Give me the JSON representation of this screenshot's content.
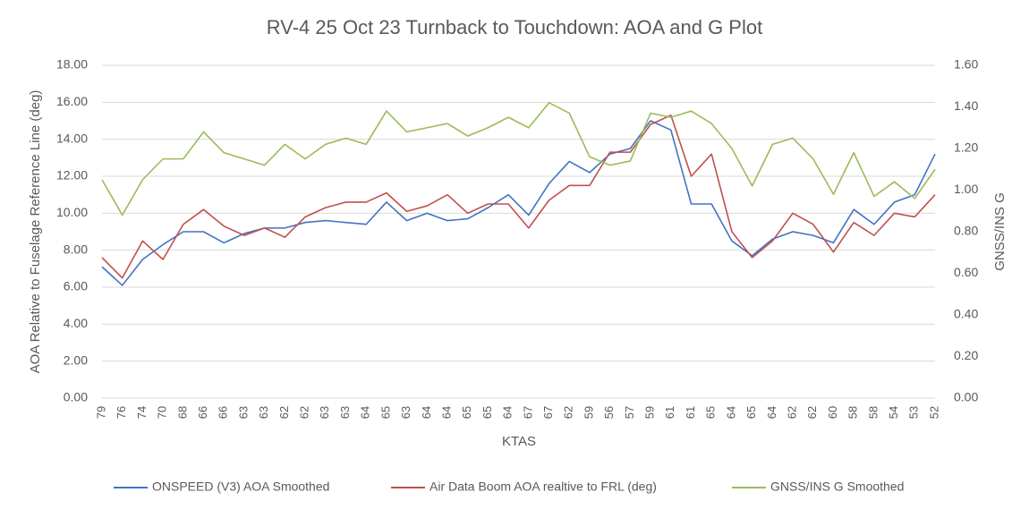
{
  "chart_data": {
    "type": "line",
    "title": "RV-4 25 Oct 23 Turnback to Touchdown: AOA and G Plot",
    "x_label": "KTAS",
    "y_label": "AOA Relative to Fuselage Reference Line (deg)",
    "y2_label": "GNSS/INS G",
    "categories": [
      "79",
      "76",
      "74",
      "70",
      "68",
      "66",
      "66",
      "63",
      "63",
      "62",
      "62",
      "63",
      "63",
      "64",
      "65",
      "63",
      "64",
      "64",
      "65",
      "65",
      "64",
      "67",
      "67",
      "62",
      "59",
      "56",
      "57",
      "59",
      "61",
      "61",
      "65",
      "64",
      "65",
      "64",
      "62",
      "62",
      "60",
      "58",
      "58",
      "54",
      "53",
      "52"
    ],
    "ylim": [
      0,
      18
    ],
    "yticks": [
      {
        "value": 0,
        "label": "0.00"
      },
      {
        "value": 2,
        "label": "2.00"
      },
      {
        "value": 4,
        "label": "4.00"
      },
      {
        "value": 6,
        "label": "6.00"
      },
      {
        "value": 8,
        "label": "8.00"
      },
      {
        "value": 10,
        "label": "10.00"
      },
      {
        "value": 12,
        "label": "12.00"
      },
      {
        "value": 14,
        "label": "14.00"
      },
      {
        "value": 16,
        "label": "16.00"
      },
      {
        "value": 18,
        "label": "18.00"
      }
    ],
    "y2lim": [
      0,
      1.6
    ],
    "y2ticks": [
      {
        "value": 0,
        "label": "0.00"
      },
      {
        "value": 0.2,
        "label": "0.20"
      },
      {
        "value": 0.4,
        "label": "0.40"
      },
      {
        "value": 0.6,
        "label": "0.60"
      },
      {
        "value": 0.8,
        "label": "0.80"
      },
      {
        "value": 1,
        "label": "1.00"
      },
      {
        "value": 1.2,
        "label": "1.20"
      },
      {
        "value": 1.4,
        "label": "1.40"
      },
      {
        "value": 1.6,
        "label": "1.60"
      }
    ],
    "grid": true,
    "legend": "bottom",
    "series": [
      {
        "name": "ONSPEED (V3) AOA Smoothed",
        "color": "#4472c4",
        "values": [
          7.1,
          6.1,
          7.5,
          8.3,
          9.0,
          9.0,
          8.4,
          8.9,
          9.2,
          9.2,
          9.5,
          9.6,
          9.5,
          9.4,
          10.6,
          9.6,
          10.0,
          9.6,
          9.7,
          10.3,
          11.0,
          9.9,
          11.6,
          12.8,
          12.2,
          13.2,
          13.5,
          15.0,
          14.5,
          10.5,
          10.5,
          8.5,
          7.7,
          8.6,
          9.0,
          8.8,
          8.4,
          10.2,
          9.4,
          10.6,
          11.0,
          13.2
        ]
      },
      {
        "name": "Air Data Boom AOA realtive to FRL (deg)",
        "color": "#c0504d",
        "values": [
          7.6,
          6.5,
          8.5,
          7.5,
          9.4,
          10.2,
          9.3,
          8.8,
          9.2,
          8.7,
          9.8,
          10.3,
          10.6,
          10.6,
          11.1,
          10.1,
          10.4,
          11.0,
          10.0,
          10.5,
          10.5,
          9.2,
          10.7,
          11.5,
          11.5,
          13.3,
          13.3,
          14.8,
          15.3,
          12.0,
          13.2,
          9.0,
          7.6,
          8.5,
          10.0,
          9.4,
          7.9,
          9.5,
          8.8,
          10.0,
          9.8,
          11.0
        ]
      },
      {
        "name": "GNSS/INS G Smoothed",
        "color": "#9bbb59",
        "axis": "y2",
        "values": [
          1.05,
          0.88,
          1.05,
          1.15,
          1.15,
          1.28,
          1.18,
          1.15,
          1.12,
          1.22,
          1.15,
          1.22,
          1.25,
          1.22,
          1.38,
          1.28,
          1.3,
          1.32,
          1.26,
          1.3,
          1.35,
          1.3,
          1.42,
          1.37,
          1.16,
          1.12,
          1.14,
          1.37,
          1.35,
          1.38,
          1.32,
          1.2,
          1.02,
          1.22,
          1.25,
          1.15,
          0.98,
          1.18,
          0.97,
          1.04,
          0.96,
          1.1
        ]
      }
    ]
  }
}
